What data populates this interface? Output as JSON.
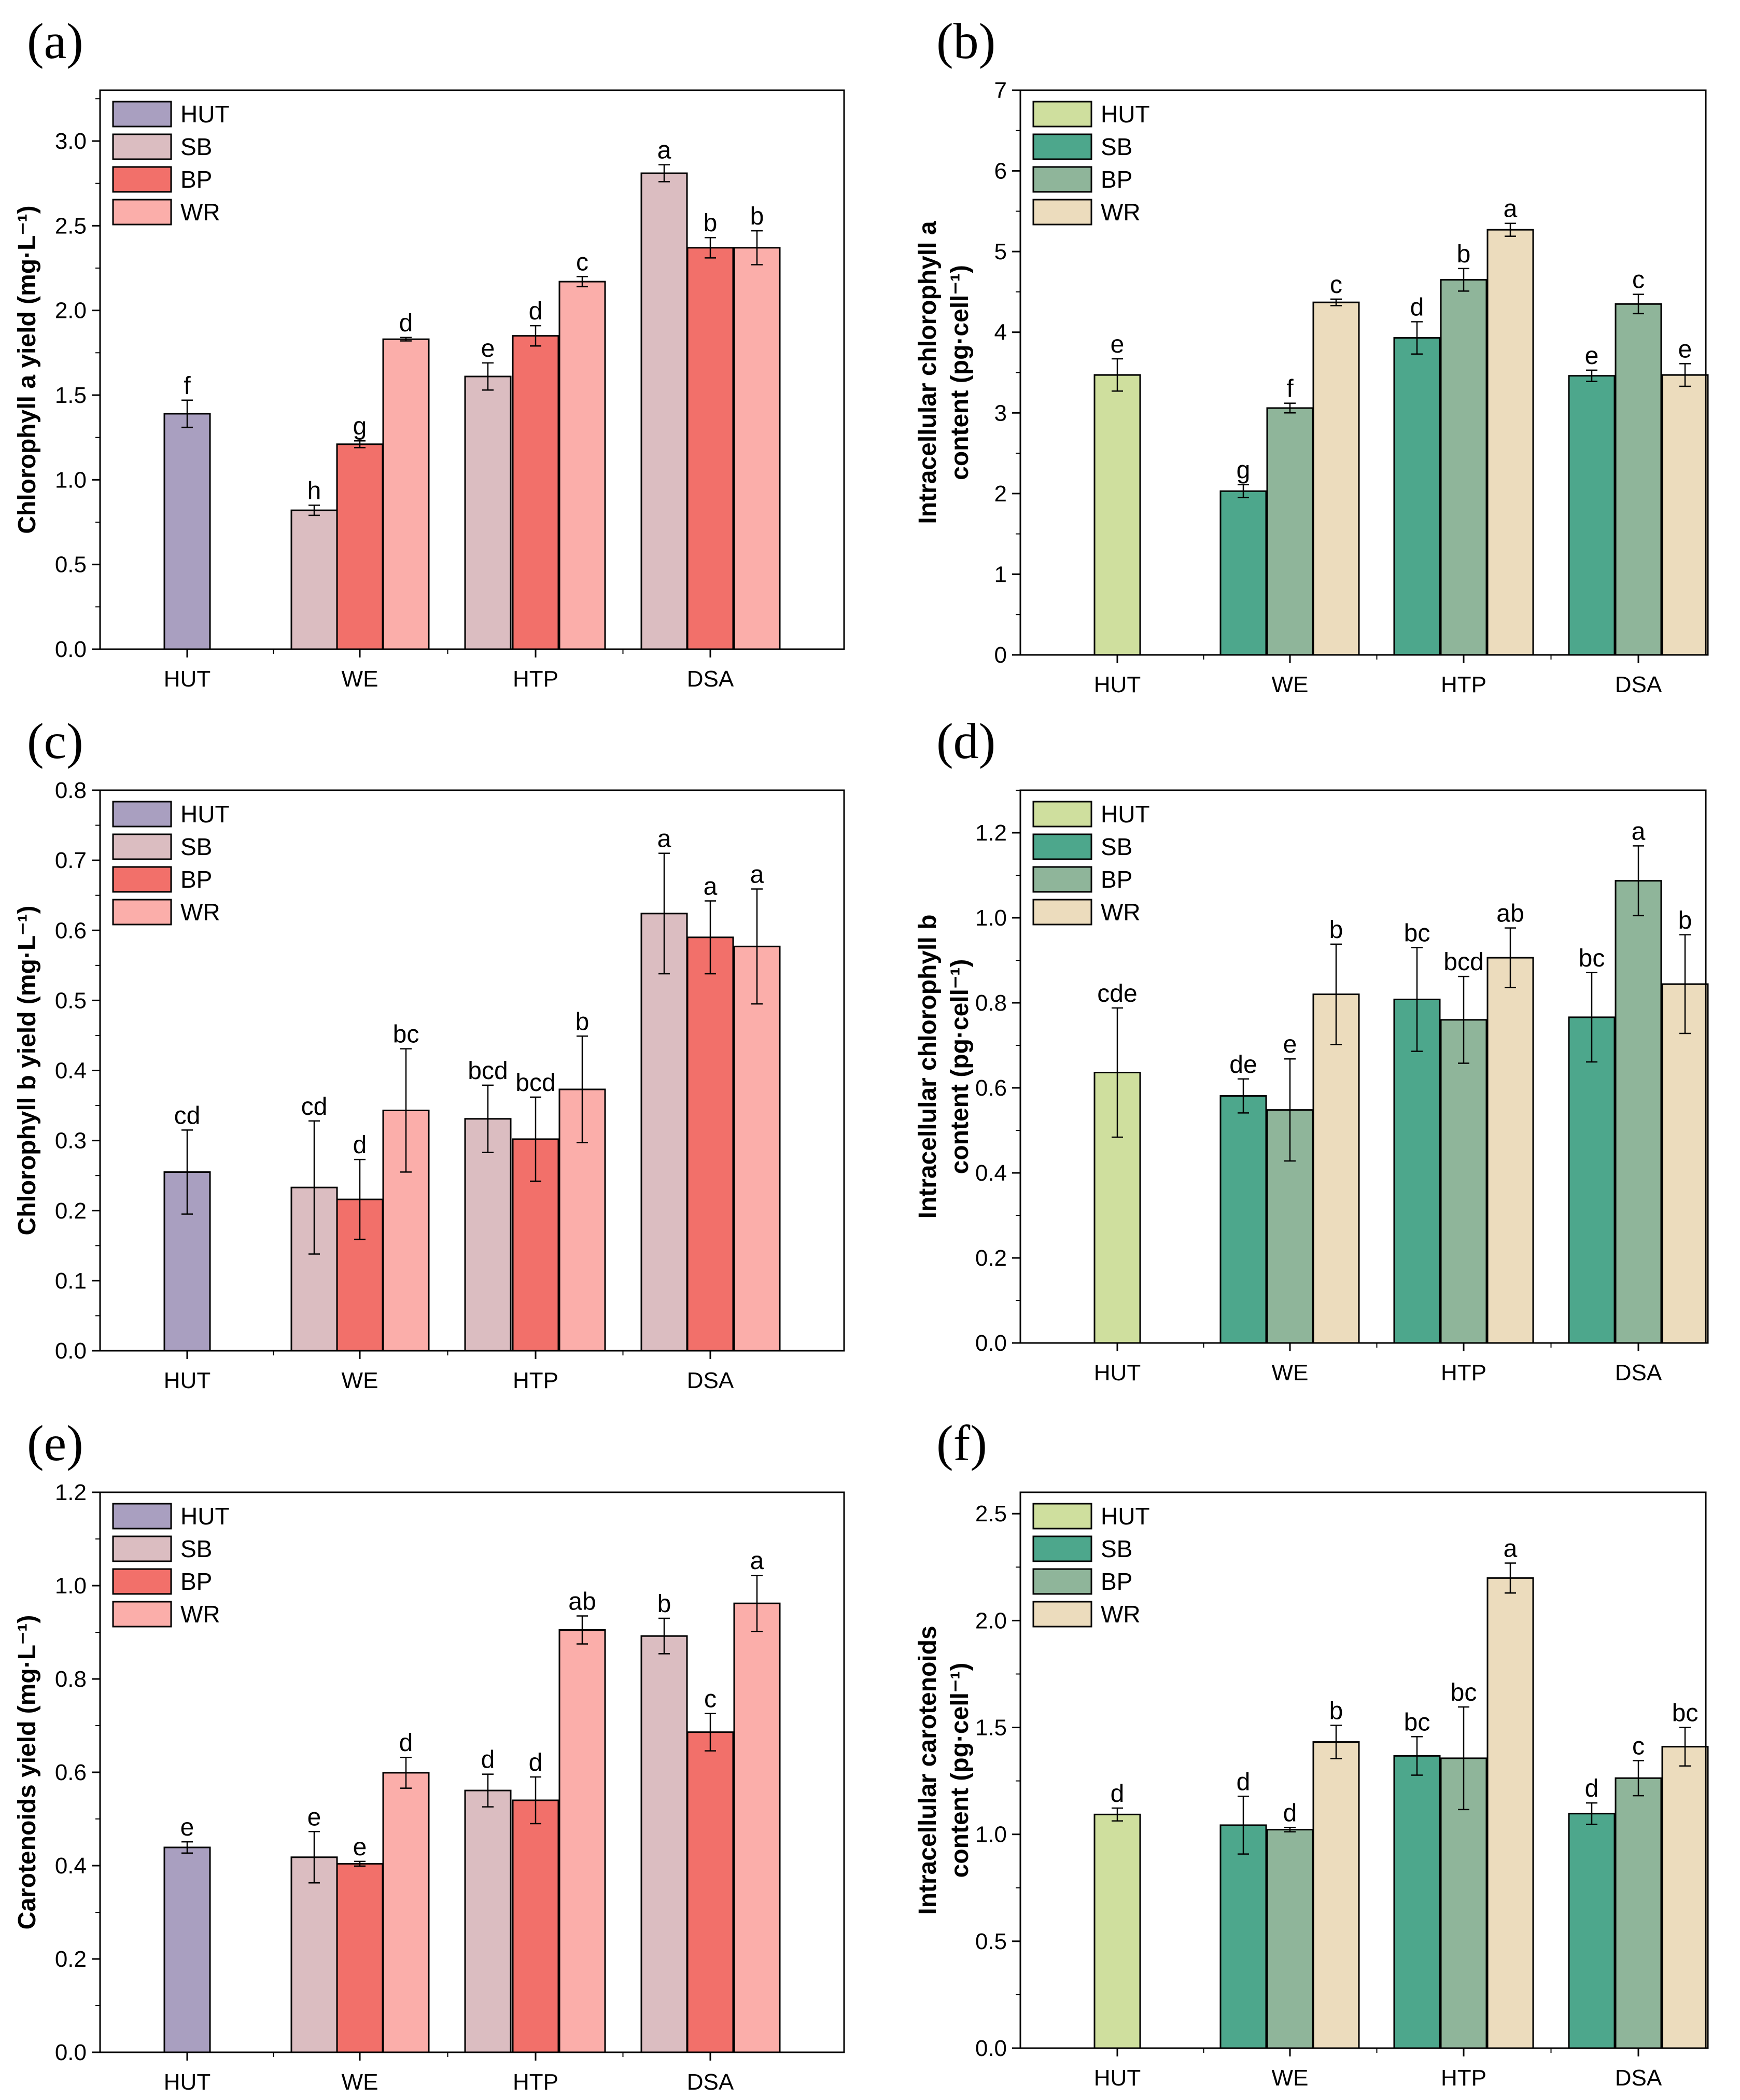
{
  "figure": {
    "groups": [
      "HUT",
      "WE",
      "HTP",
      "DSA"
    ],
    "series_names": [
      "HUT",
      "SB",
      "BP",
      "WR"
    ],
    "colors_left": {
      "HUT": "#a99fc0",
      "SB": "#dbbdc1",
      "BP": "#f2706a",
      "WR": "#fbaeaa"
    },
    "colors_right": {
      "HUT": "#cfdf9e",
      "SB": "#4da78c",
      "BP": "#8fb59a",
      "WR": "#ecdcbd"
    }
  },
  "chart_data": [
    {
      "id": "a",
      "panel_label": "(a)",
      "type": "bar",
      "side": "left",
      "ylabel_lines": [
        "Chlorophyll a yield (mg·L⁻¹)"
      ],
      "ylim": [
        0,
        3.3
      ],
      "yticks": [
        0.0,
        0.5,
        1.0,
        1.5,
        2.0,
        2.5,
        3.0
      ],
      "tick_decimals": 1,
      "legend": [
        "HUT",
        "SB",
        "BP",
        "WR"
      ],
      "categories": [
        "HUT",
        "WE",
        "HTP",
        "DSA"
      ],
      "bars": [
        {
          "group": "HUT",
          "series": "HUT",
          "value": 1.39,
          "err": 0.08,
          "sig": "f"
        },
        {
          "group": "WE",
          "series": "SB",
          "value": 0.82,
          "err": 0.03,
          "sig": "h"
        },
        {
          "group": "WE",
          "series": "BP",
          "value": 1.21,
          "err": 0.02,
          "sig": "g"
        },
        {
          "group": "WE",
          "series": "WR",
          "value": 1.83,
          "err": 0.01,
          "sig": "d"
        },
        {
          "group": "HTP",
          "series": "SB",
          "value": 1.61,
          "err": 0.08,
          "sig": "e"
        },
        {
          "group": "HTP",
          "series": "BP",
          "value": 1.85,
          "err": 0.06,
          "sig": "d"
        },
        {
          "group": "HTP",
          "series": "WR",
          "value": 2.17,
          "err": 0.03,
          "sig": "c"
        },
        {
          "group": "DSA",
          "series": "SB",
          "value": 2.81,
          "err": 0.05,
          "sig": "a"
        },
        {
          "group": "DSA",
          "series": "BP",
          "value": 2.37,
          "err": 0.06,
          "sig": "b"
        },
        {
          "group": "DSA",
          "series": "WR",
          "value": 2.37,
          "err": 0.1,
          "sig": "b"
        }
      ]
    },
    {
      "id": "b",
      "panel_label": "(b)",
      "type": "bar",
      "side": "right",
      "ylabel_lines": [
        "Intracellular chlorophyll a",
        "content (pg·cell⁻¹)"
      ],
      "ylim": [
        0,
        7
      ],
      "yticks": [
        0,
        1,
        2,
        3,
        4,
        5,
        6,
        7
      ],
      "tick_decimals": 0,
      "legend": [
        "HUT",
        "SB",
        "BP",
        "WR"
      ],
      "categories": [
        "HUT",
        "WE",
        "HTP",
        "DSA"
      ],
      "bars": [
        {
          "group": "HUT",
          "series": "HUT",
          "value": 3.47,
          "err": 0.2,
          "sig": "e"
        },
        {
          "group": "WE",
          "series": "SB",
          "value": 2.03,
          "err": 0.08,
          "sig": "g"
        },
        {
          "group": "WE",
          "series": "BP",
          "value": 3.06,
          "err": 0.06,
          "sig": "f"
        },
        {
          "group": "WE",
          "series": "WR",
          "value": 4.37,
          "err": 0.04,
          "sig": "c"
        },
        {
          "group": "HTP",
          "series": "SB",
          "value": 3.93,
          "err": 0.2,
          "sig": "d"
        },
        {
          "group": "HTP",
          "series": "BP",
          "value": 4.65,
          "err": 0.14,
          "sig": "b"
        },
        {
          "group": "HTP",
          "series": "WR",
          "value": 5.27,
          "err": 0.08,
          "sig": "a"
        },
        {
          "group": "DSA",
          "series": "SB",
          "value": 3.46,
          "err": 0.07,
          "sig": "e"
        },
        {
          "group": "DSA",
          "series": "BP",
          "value": 4.35,
          "err": 0.12,
          "sig": "c"
        },
        {
          "group": "DSA",
          "series": "WR",
          "value": 3.47,
          "err": 0.14,
          "sig": "e"
        }
      ]
    },
    {
      "id": "c",
      "panel_label": "(c)",
      "type": "bar",
      "side": "left",
      "ylabel_lines": [
        "Chlorophyll b yield (mg·L⁻¹)"
      ],
      "ylim": [
        0,
        0.8
      ],
      "yticks": [
        0.0,
        0.1,
        0.2,
        0.3,
        0.4,
        0.5,
        0.6,
        0.7,
        0.8
      ],
      "tick_decimals": 1,
      "legend": [
        "HUT",
        "SB",
        "BP",
        "WR"
      ],
      "categories": [
        "HUT",
        "WE",
        "HTP",
        "DSA"
      ],
      "bars": [
        {
          "group": "HUT",
          "series": "HUT",
          "value": 0.255,
          "err": 0.06,
          "sig": "cd"
        },
        {
          "group": "WE",
          "series": "SB",
          "value": 0.233,
          "err": 0.095,
          "sig": "cd"
        },
        {
          "group": "WE",
          "series": "BP",
          "value": 0.216,
          "err": 0.057,
          "sig": "d"
        },
        {
          "group": "WE",
          "series": "WR",
          "value": 0.343,
          "err": 0.088,
          "sig": "bc"
        },
        {
          "group": "HTP",
          "series": "SB",
          "value": 0.331,
          "err": 0.048,
          "sig": "bcd"
        },
        {
          "group": "HTP",
          "series": "BP",
          "value": 0.302,
          "err": 0.06,
          "sig": "bcd"
        },
        {
          "group": "HTP",
          "series": "WR",
          "value": 0.373,
          "err": 0.076,
          "sig": "b"
        },
        {
          "group": "DSA",
          "series": "SB",
          "value": 0.624,
          "err": 0.086,
          "sig": "a"
        },
        {
          "group": "DSA",
          "series": "BP",
          "value": 0.59,
          "err": 0.052,
          "sig": "a"
        },
        {
          "group": "DSA",
          "series": "WR",
          "value": 0.577,
          "err": 0.082,
          "sig": "a"
        }
      ]
    },
    {
      "id": "d",
      "panel_label": "(d)",
      "type": "bar",
      "side": "right",
      "ylabel_lines": [
        "Intracellular chlorophyll b",
        "content (pg·cell⁻¹)"
      ],
      "ylim": [
        0,
        1.3
      ],
      "yticks": [
        0.0,
        0.2,
        0.4,
        0.6,
        0.8,
        1.0,
        1.2
      ],
      "tick_decimals": 1,
      "legend": [
        "HUT",
        "SB",
        "BP",
        "WR"
      ],
      "categories": [
        "HUT",
        "WE",
        "HTP",
        "DSA"
      ],
      "bars": [
        {
          "group": "HUT",
          "series": "HUT",
          "value": 0.636,
          "err": 0.152,
          "sig": "cde"
        },
        {
          "group": "WE",
          "series": "SB",
          "value": 0.581,
          "err": 0.04,
          "sig": "de"
        },
        {
          "group": "WE",
          "series": "BP",
          "value": 0.548,
          "err": 0.12,
          "sig": "e"
        },
        {
          "group": "WE",
          "series": "WR",
          "value": 0.82,
          "err": 0.118,
          "sig": "b"
        },
        {
          "group": "HTP",
          "series": "SB",
          "value": 0.808,
          "err": 0.122,
          "sig": "bc"
        },
        {
          "group": "HTP",
          "series": "BP",
          "value": 0.76,
          "err": 0.102,
          "sig": "bcd"
        },
        {
          "group": "HTP",
          "series": "WR",
          "value": 0.906,
          "err": 0.07,
          "sig": "ab"
        },
        {
          "group": "DSA",
          "series": "SB",
          "value": 0.766,
          "err": 0.105,
          "sig": "bc"
        },
        {
          "group": "DSA",
          "series": "BP",
          "value": 1.087,
          "err": 0.082,
          "sig": "a"
        },
        {
          "group": "DSA",
          "series": "WR",
          "value": 0.844,
          "err": 0.116,
          "sig": "b"
        }
      ]
    },
    {
      "id": "e",
      "panel_label": "(e)",
      "type": "bar",
      "side": "left",
      "ylabel_lines": [
        "Carotenoids yield (mg·L⁻¹)"
      ],
      "ylim": [
        0,
        1.2
      ],
      "yticks": [
        0.0,
        0.2,
        0.4,
        0.6,
        0.8,
        1.0,
        1.2
      ],
      "tick_decimals": 1,
      "legend": [
        "HUT",
        "SB",
        "BP",
        "WR"
      ],
      "categories": [
        "HUT",
        "WE",
        "HTP",
        "DSA"
      ],
      "bars": [
        {
          "group": "HUT",
          "series": "HUT",
          "value": 0.439,
          "err": 0.012,
          "sig": "e"
        },
        {
          "group": "WE",
          "series": "SB",
          "value": 0.418,
          "err": 0.055,
          "sig": "e"
        },
        {
          "group": "WE",
          "series": "BP",
          "value": 0.404,
          "err": 0.005,
          "sig": "e"
        },
        {
          "group": "WE",
          "series": "WR",
          "value": 0.599,
          "err": 0.033,
          "sig": "d"
        },
        {
          "group": "HTP",
          "series": "SB",
          "value": 0.561,
          "err": 0.035,
          "sig": "d"
        },
        {
          "group": "HTP",
          "series": "BP",
          "value": 0.54,
          "err": 0.05,
          "sig": "d"
        },
        {
          "group": "HTP",
          "series": "WR",
          "value": 0.905,
          "err": 0.03,
          "sig": "ab"
        },
        {
          "group": "DSA",
          "series": "SB",
          "value": 0.892,
          "err": 0.038,
          "sig": "b"
        },
        {
          "group": "DSA",
          "series": "BP",
          "value": 0.686,
          "err": 0.04,
          "sig": "c"
        },
        {
          "group": "DSA",
          "series": "WR",
          "value": 0.962,
          "err": 0.06,
          "sig": "a"
        }
      ]
    },
    {
      "id": "f",
      "panel_label": "(f)",
      "type": "bar",
      "side": "right",
      "ylabel_lines": [
        "Intracellular carotenoids",
        "content (pg·cell⁻¹)"
      ],
      "ylim": [
        0,
        2.6
      ],
      "yticks": [
        0.0,
        0.5,
        1.0,
        1.5,
        2.0,
        2.5
      ],
      "tick_decimals": 1,
      "legend": [
        "HUT",
        "SB",
        "BP",
        "WR"
      ],
      "categories": [
        "HUT",
        "WE",
        "HTP",
        "DSA"
      ],
      "bars": [
        {
          "group": "HUT",
          "series": "HUT",
          "value": 1.093,
          "err": 0.03,
          "sig": "d"
        },
        {
          "group": "WE",
          "series": "SB",
          "value": 1.043,
          "err": 0.135,
          "sig": "d"
        },
        {
          "group": "WE",
          "series": "BP",
          "value": 1.022,
          "err": 0.01,
          "sig": "d"
        },
        {
          "group": "WE",
          "series": "WR",
          "value": 1.432,
          "err": 0.078,
          "sig": "b"
        },
        {
          "group": "HTP",
          "series": "SB",
          "value": 1.367,
          "err": 0.09,
          "sig": "bc"
        },
        {
          "group": "HTP",
          "series": "BP",
          "value": 1.356,
          "err": 0.24,
          "sig": "bc"
        },
        {
          "group": "HTP",
          "series": "WR",
          "value": 2.199,
          "err": 0.07,
          "sig": "a"
        },
        {
          "group": "DSA",
          "series": "SB",
          "value": 1.097,
          "err": 0.05,
          "sig": "d"
        },
        {
          "group": "DSA",
          "series": "BP",
          "value": 1.263,
          "err": 0.082,
          "sig": "c"
        },
        {
          "group": "DSA",
          "series": "WR",
          "value": 1.41,
          "err": 0.09,
          "sig": "bc"
        }
      ]
    }
  ]
}
